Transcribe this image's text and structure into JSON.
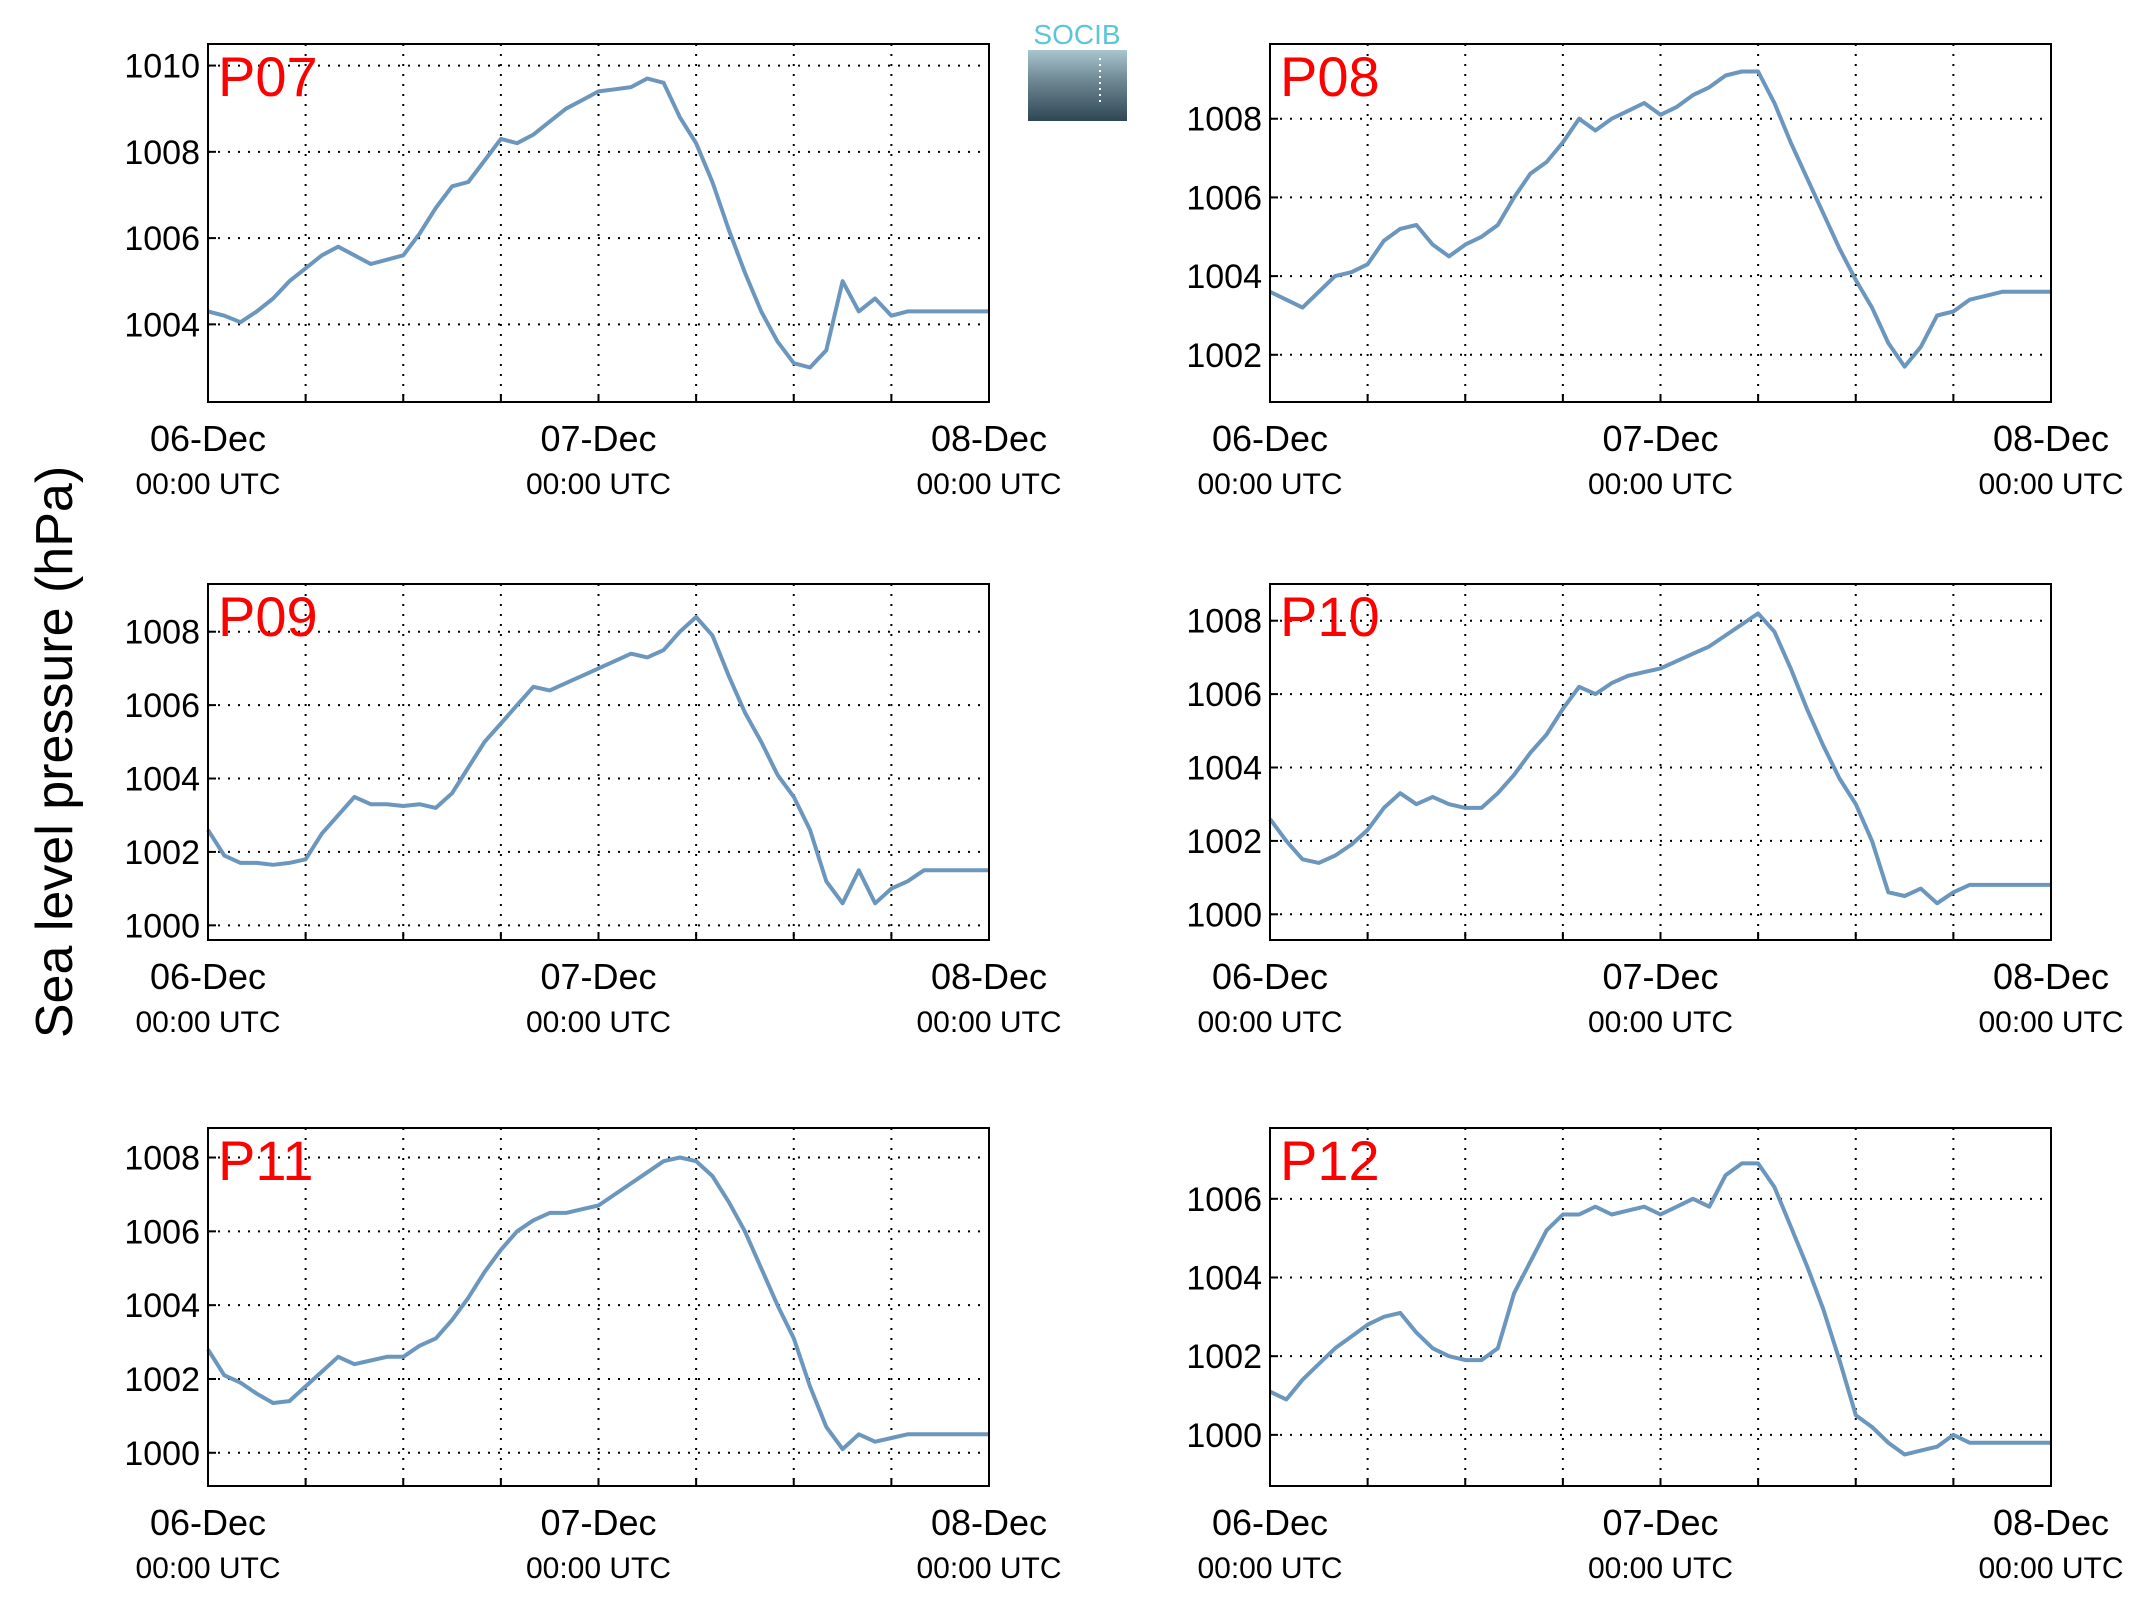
{
  "figure": {
    "ylabel": "Sea level pressure (hPa)",
    "logo_text": "SOCIB",
    "colors": {
      "line": "#6b96bd",
      "panel_label": "#ff0000",
      "axis": "#000000",
      "logo_top": "#5cc6d9",
      "logo_dark": "#2f4755"
    }
  },
  "chart_data": [
    {
      "type": "line",
      "label": "P07",
      "xticks": [
        {
          "date": "06-Dec",
          "time": "00:00 UTC"
        },
        {
          "date": "07-Dec",
          "time": "00:00 UTC"
        },
        {
          "date": "08-Dec",
          "time": "00:00 UTC"
        }
      ],
      "xlim_hours": [
        0,
        48
      ],
      "ylim": [
        1002.2,
        1010.5
      ],
      "yticks": [
        1004,
        1006,
        1008,
        1010
      ],
      "grid": true,
      "series": [
        {
          "x_hours": [
            0,
            1,
            2,
            3,
            4,
            5,
            6,
            7,
            8,
            9,
            10,
            11,
            12,
            13,
            14,
            15,
            16,
            17,
            18,
            19,
            20,
            21,
            22,
            23,
            24,
            25,
            26,
            27,
            28,
            29,
            30,
            31,
            32,
            33,
            34,
            35,
            36,
            37,
            38,
            39,
            40,
            41,
            42,
            43,
            44,
            45,
            46,
            47,
            48
          ],
          "values": [
            1004.3,
            1004.2,
            1004.05,
            1004.3,
            1004.6,
            1005.0,
            1005.3,
            1005.6,
            1005.8,
            1005.6,
            1005.4,
            1005.5,
            1005.6,
            1006.1,
            1006.7,
            1007.2,
            1007.3,
            1007.8,
            1008.3,
            1008.2,
            1008.4,
            1008.7,
            1009.0,
            1009.2,
            1009.4,
            1009.45,
            1009.5,
            1009.7,
            1009.6,
            1008.8,
            1008.2,
            1007.3,
            1006.2,
            1005.2,
            1004.3,
            1003.6,
            1003.1,
            1003.0,
            1003.4,
            1005.0,
            1004.3,
            1004.6,
            1004.2,
            1004.3,
            1004.3,
            1004.3,
            1004.3,
            1004.3,
            1004.3
          ]
        }
      ]
    },
    {
      "type": "line",
      "label": "P08",
      "xticks": [
        {
          "date": "06-Dec",
          "time": "00:00 UTC"
        },
        {
          "date": "07-Dec",
          "time": "00:00 UTC"
        },
        {
          "date": "08-Dec",
          "time": "00:00 UTC"
        }
      ],
      "xlim_hours": [
        0,
        48
      ],
      "ylim": [
        1000.8,
        1009.9
      ],
      "yticks": [
        1002,
        1004,
        1006,
        1008
      ],
      "grid": true,
      "series": [
        {
          "x_hours": [
            0,
            1,
            2,
            3,
            4,
            5,
            6,
            7,
            8,
            9,
            10,
            11,
            12,
            13,
            14,
            15,
            16,
            17,
            18,
            19,
            20,
            21,
            22,
            23,
            24,
            25,
            26,
            27,
            28,
            29,
            30,
            31,
            32,
            33,
            34,
            35,
            36,
            37,
            38,
            39,
            40,
            41,
            42,
            43,
            44,
            45,
            46,
            47,
            48
          ],
          "values": [
            1003.6,
            1003.4,
            1003.2,
            1003.6,
            1004.0,
            1004.1,
            1004.3,
            1004.9,
            1005.2,
            1005.3,
            1004.8,
            1004.5,
            1004.8,
            1005.0,
            1005.3,
            1006.0,
            1006.6,
            1006.9,
            1007.4,
            1008.0,
            1007.7,
            1008.0,
            1008.2,
            1008.4,
            1008.1,
            1008.3,
            1008.6,
            1008.8,
            1009.1,
            1009.2,
            1009.2,
            1008.4,
            1007.4,
            1006.5,
            1005.6,
            1004.7,
            1003.9,
            1003.2,
            1002.3,
            1001.7,
            1002.2,
            1003.0,
            1003.1,
            1003.4,
            1003.5,
            1003.6,
            1003.6,
            1003.6,
            1003.6
          ]
        }
      ]
    },
    {
      "type": "line",
      "label": "P09",
      "xticks": [
        {
          "date": "06-Dec",
          "time": "00:00 UTC"
        },
        {
          "date": "07-Dec",
          "time": "00:00 UTC"
        },
        {
          "date": "08-Dec",
          "time": "00:00 UTC"
        }
      ],
      "xlim_hours": [
        0,
        48
      ],
      "ylim": [
        999.6,
        1009.3
      ],
      "yticks": [
        1000,
        1002,
        1004,
        1006,
        1008
      ],
      "grid": true,
      "series": [
        {
          "x_hours": [
            0,
            1,
            2,
            3,
            4,
            5,
            6,
            7,
            8,
            9,
            10,
            11,
            12,
            13,
            14,
            15,
            16,
            17,
            18,
            19,
            20,
            21,
            22,
            23,
            24,
            25,
            26,
            27,
            28,
            29,
            30,
            31,
            32,
            33,
            34,
            35,
            36,
            37,
            38,
            39,
            40,
            41,
            42,
            43,
            44,
            45,
            46,
            47,
            48
          ],
          "values": [
            1002.6,
            1001.9,
            1001.7,
            1001.7,
            1001.65,
            1001.7,
            1001.8,
            1002.5,
            1003.0,
            1003.5,
            1003.3,
            1003.3,
            1003.25,
            1003.3,
            1003.2,
            1003.6,
            1004.3,
            1005.0,
            1005.5,
            1006.0,
            1006.5,
            1006.4,
            1006.6,
            1006.8,
            1007.0,
            1007.2,
            1007.4,
            1007.3,
            1007.5,
            1008.0,
            1008.4,
            1007.9,
            1006.8,
            1005.8,
            1005.0,
            1004.1,
            1003.5,
            1002.6,
            1001.2,
            1000.6,
            1001.5,
            1000.6,
            1001.0,
            1001.2,
            1001.5,
            1001.5,
            1001.5,
            1001.5,
            1001.5
          ]
        }
      ]
    },
    {
      "type": "line",
      "label": "P10",
      "xticks": [
        {
          "date": "06-Dec",
          "time": "00:00 UTC"
        },
        {
          "date": "07-Dec",
          "time": "00:00 UTC"
        },
        {
          "date": "08-Dec",
          "time": "00:00 UTC"
        }
      ],
      "xlim_hours": [
        0,
        48
      ],
      "ylim": [
        999.3,
        1009.0
      ],
      "yticks": [
        1000,
        1002,
        1004,
        1006,
        1008
      ],
      "grid": true,
      "series": [
        {
          "x_hours": [
            0,
            1,
            2,
            3,
            4,
            5,
            6,
            7,
            8,
            9,
            10,
            11,
            12,
            13,
            14,
            15,
            16,
            17,
            18,
            19,
            20,
            21,
            22,
            23,
            24,
            25,
            26,
            27,
            28,
            29,
            30,
            31,
            32,
            33,
            34,
            35,
            36,
            37,
            38,
            39,
            40,
            41,
            42,
            43,
            44,
            45,
            46,
            47,
            48
          ],
          "values": [
            1002.6,
            1002.0,
            1001.5,
            1001.4,
            1001.6,
            1001.9,
            1002.3,
            1002.9,
            1003.3,
            1003.0,
            1003.2,
            1003.0,
            1002.9,
            1002.9,
            1003.3,
            1003.8,
            1004.4,
            1004.9,
            1005.6,
            1006.2,
            1006.0,
            1006.3,
            1006.5,
            1006.6,
            1006.7,
            1006.9,
            1007.1,
            1007.3,
            1007.6,
            1007.9,
            1008.2,
            1007.7,
            1006.7,
            1005.6,
            1004.6,
            1003.7,
            1003.0,
            1002.0,
            1000.6,
            1000.5,
            1000.7,
            1000.3,
            1000.6,
            1000.8,
            1000.8,
            1000.8,
            1000.8,
            1000.8,
            1000.8
          ]
        }
      ]
    },
    {
      "type": "line",
      "label": "P11",
      "xticks": [
        {
          "date": "06-Dec",
          "time": "00:00 UTC"
        },
        {
          "date": "07-Dec",
          "time": "00:00 UTC"
        },
        {
          "date": "08-Dec",
          "time": "00:00 UTC"
        }
      ],
      "xlim_hours": [
        0,
        48
      ],
      "ylim": [
        999.1,
        1008.8
      ],
      "yticks": [
        1000,
        1002,
        1004,
        1006,
        1008
      ],
      "grid": true,
      "series": [
        {
          "x_hours": [
            0,
            1,
            2,
            3,
            4,
            5,
            6,
            7,
            8,
            9,
            10,
            11,
            12,
            13,
            14,
            15,
            16,
            17,
            18,
            19,
            20,
            21,
            22,
            23,
            24,
            25,
            26,
            27,
            28,
            29,
            30,
            31,
            32,
            33,
            34,
            35,
            36,
            37,
            38,
            39,
            40,
            41,
            42,
            43,
            44,
            45,
            46,
            47,
            48
          ],
          "values": [
            1002.8,
            1002.1,
            1001.9,
            1001.6,
            1001.35,
            1001.4,
            1001.8,
            1002.2,
            1002.6,
            1002.4,
            1002.5,
            1002.6,
            1002.6,
            1002.9,
            1003.1,
            1003.6,
            1004.2,
            1004.9,
            1005.5,
            1006.0,
            1006.3,
            1006.5,
            1006.5,
            1006.6,
            1006.7,
            1007.0,
            1007.3,
            1007.6,
            1007.9,
            1008.0,
            1007.9,
            1007.5,
            1006.8,
            1006.0,
            1005.0,
            1004.0,
            1003.1,
            1001.8,
            1000.7,
            1000.1,
            1000.5,
            1000.3,
            1000.4,
            1000.5,
            1000.5,
            1000.5,
            1000.5,
            1000.5,
            1000.5
          ]
        }
      ]
    },
    {
      "type": "line",
      "label": "P12",
      "xticks": [
        {
          "date": "06-Dec",
          "time": "00:00 UTC"
        },
        {
          "date": "07-Dec",
          "time": "00:00 UTC"
        },
        {
          "date": "08-Dec",
          "time": "00:00 UTC"
        }
      ],
      "xlim_hours": [
        0,
        48
      ],
      "ylim": [
        998.7,
        1007.8
      ],
      "yticks": [
        1000,
        1002,
        1004,
        1006
      ],
      "grid": true,
      "series": [
        {
          "x_hours": [
            0,
            1,
            2,
            3,
            4,
            5,
            6,
            7,
            8,
            9,
            10,
            11,
            12,
            13,
            14,
            15,
            16,
            17,
            18,
            19,
            20,
            21,
            22,
            23,
            24,
            25,
            26,
            27,
            28,
            29,
            30,
            31,
            32,
            33,
            34,
            35,
            36,
            37,
            38,
            39,
            40,
            41,
            42,
            43,
            44,
            45,
            46,
            47,
            48
          ],
          "values": [
            1001.1,
            1000.9,
            1001.4,
            1001.8,
            1002.2,
            1002.5,
            1002.8,
            1003.0,
            1003.1,
            1002.6,
            1002.2,
            1002.0,
            1001.9,
            1001.9,
            1002.2,
            1003.6,
            1004.4,
            1005.2,
            1005.6,
            1005.6,
            1005.8,
            1005.6,
            1005.7,
            1005.8,
            1005.6,
            1005.8,
            1006.0,
            1005.8,
            1006.6,
            1006.9,
            1006.9,
            1006.3,
            1005.3,
            1004.3,
            1003.2,
            1001.9,
            1000.5,
            1000.2,
            999.8,
            999.5,
            999.6,
            999.7,
            1000.0,
            999.8,
            999.8,
            999.8,
            999.8,
            999.8,
            999.8
          ]
        }
      ]
    }
  ]
}
